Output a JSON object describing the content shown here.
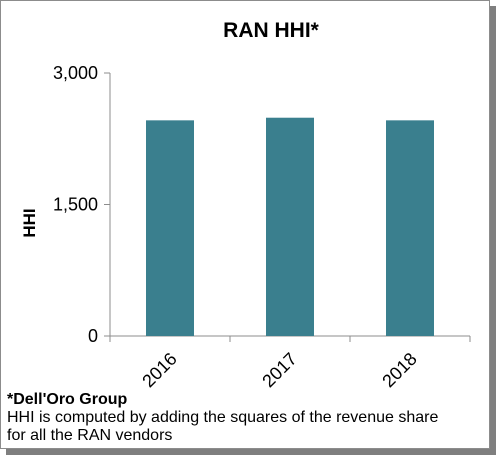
{
  "chart_data": {
    "type": "bar",
    "title": "RAN HHI*",
    "ylabel": "HHI",
    "xlabel": "",
    "categories": [
      "2016",
      "2017",
      "2018"
    ],
    "values": [
      2460,
      2490,
      2460
    ],
    "ylim": [
      0,
      3000
    ],
    "yticks": [
      0,
      1500,
      3000
    ],
    "ytick_labels": [
      "0",
      "1,500",
      "3,000"
    ],
    "bar_color": "#3a7f8e",
    "grid": false,
    "legend": "none"
  },
  "footnote": {
    "source": "*Dell'Oro Group",
    "line1": "HHI is computed by adding the squares of the revenue share",
    "line2": "for all the RAN vendors"
  }
}
